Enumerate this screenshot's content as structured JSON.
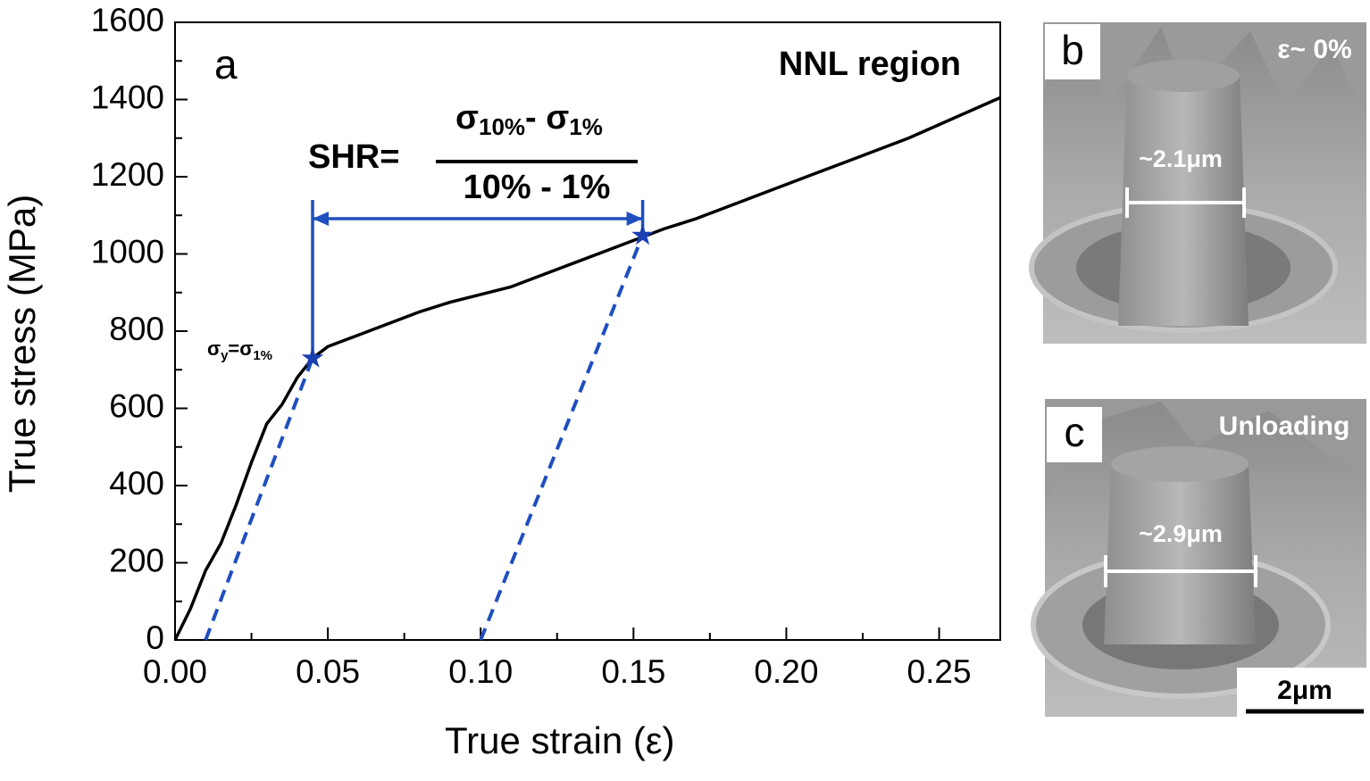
{
  "chart_data": {
    "type": "line",
    "x_label": "True strain (ε)",
    "y_label": "True stress (MPa)",
    "panel_letter": "a",
    "region_label": "NNL region",
    "formula": {
      "lhs": "SHR=",
      "num": [
        "σ",
        "10%",
        "- σ",
        "1%"
      ],
      "den": "10% - 1%"
    },
    "point_label": [
      "σ",
      "y",
      "=σ",
      "1%"
    ],
    "x": [
      0,
      0.005,
      0.01,
      0.015,
      0.02,
      0.025,
      0.03,
      0.035,
      0.04,
      0.045,
      0.05,
      0.06,
      0.07,
      0.08,
      0.09,
      0.1,
      0.11,
      0.12,
      0.13,
      0.14,
      0.15,
      0.16,
      0.17,
      0.18,
      0.19,
      0.2,
      0.21,
      0.22,
      0.23,
      0.24,
      0.25,
      0.26,
      0.27
    ],
    "series": [
      {
        "color": "#000000",
        "values": [
          0,
          80,
          180,
          250,
          350,
          460,
          560,
          610,
          680,
          730,
          760,
          790,
          820,
          850,
          875,
          895,
          915,
          945,
          975,
          1005,
          1035,
          1065,
          1090,
          1120,
          1150,
          1180,
          1210,
          1240,
          1270,
          1300,
          1335,
          1370,
          1405
        ]
      }
    ],
    "markers": {
      "color": "#1a3fb0",
      "x": [
        0.045,
        0.153
      ],
      "y": [
        730,
        1048
      ]
    },
    "unloading_lines": [
      {
        "x": [
          0.01,
          0.045
        ],
        "y": [
          0,
          730
        ]
      },
      {
        "x": [
          0.1,
          0.153
        ],
        "y": [
          0,
          1048
        ]
      }
    ],
    "guide_color": "#1f4fbf",
    "xlim": [
      0,
      0.27
    ],
    "ylim": [
      0,
      1600
    ],
    "xticks": [
      {
        "value": 0,
        "label": "0.00"
      },
      0.05,
      {
        "value": 0.1,
        "label": "0.10"
      },
      0.15,
      {
        "value": 0.2,
        "label": "0.20"
      },
      0.25
    ],
    "yticks": [
      0,
      200,
      400,
      600,
      800,
      1000,
      1200,
      1400,
      1600
    ]
  },
  "panels": [
    {
      "letter": "b",
      "label": "ε~ 0%",
      "width_label": "~2.1μm"
    },
    {
      "letter": "c",
      "label": "Unloading",
      "width_label": "~2.9μm",
      "scale_bar": "2μm"
    }
  ]
}
